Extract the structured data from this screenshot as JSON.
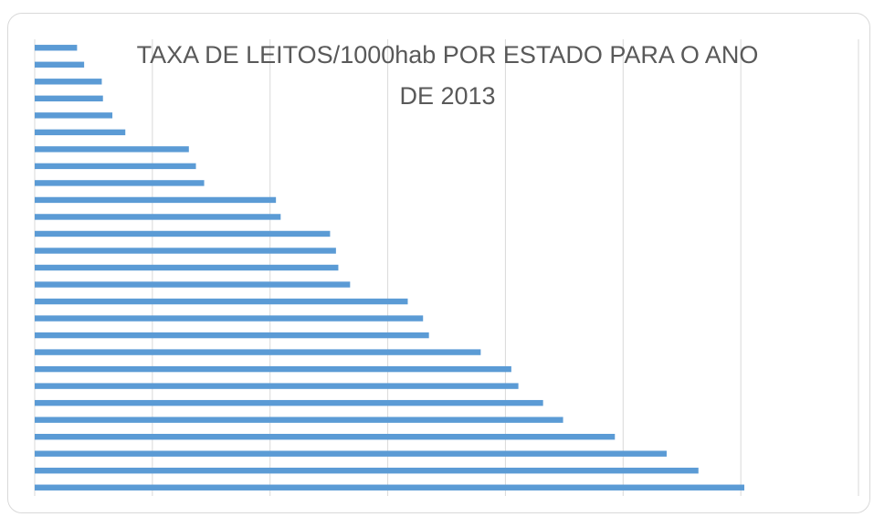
{
  "chart_data": {
    "type": "barh",
    "title": "TAXA DE LEITOS/1000hab POR ESTADO PARA O ANO DE 2013",
    "categories": [
      null,
      null,
      null,
      null,
      null,
      null,
      null,
      null,
      null,
      null,
      null,
      null,
      null,
      null,
      null,
      null,
      null,
      null,
      null,
      null,
      null,
      null,
      null,
      null,
      null,
      null,
      null
    ],
    "values": [
      0.36,
      0.42,
      0.57,
      0.58,
      0.66,
      0.77,
      1.31,
      1.37,
      1.44,
      2.05,
      2.09,
      2.51,
      2.56,
      2.58,
      2.68,
      3.17,
      3.3,
      3.35,
      3.79,
      4.05,
      4.11,
      4.32,
      4.49,
      4.93,
      5.37,
      5.64,
      6.03
    ],
    "color": "#5b9bd5",
    "xlim": [
      0,
      7
    ],
    "xticks": [
      0,
      1,
      2,
      3,
      4,
      5,
      6,
      7
    ],
    "grid": true
  }
}
